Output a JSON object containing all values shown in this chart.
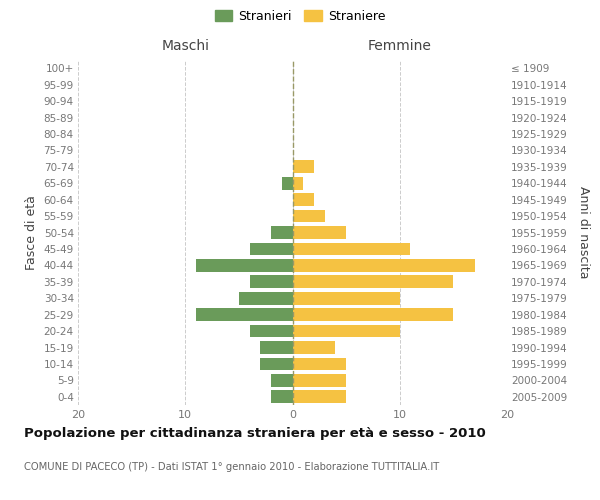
{
  "age_groups": [
    "0-4",
    "5-9",
    "10-14",
    "15-19",
    "20-24",
    "25-29",
    "30-34",
    "35-39",
    "40-44",
    "45-49",
    "50-54",
    "55-59",
    "60-64",
    "65-69",
    "70-74",
    "75-79",
    "80-84",
    "85-89",
    "90-94",
    "95-99",
    "100+"
  ],
  "birth_years": [
    "2005-2009",
    "2000-2004",
    "1995-1999",
    "1990-1994",
    "1985-1989",
    "1980-1984",
    "1975-1979",
    "1970-1974",
    "1965-1969",
    "1960-1964",
    "1955-1959",
    "1950-1954",
    "1945-1949",
    "1940-1944",
    "1935-1939",
    "1930-1934",
    "1925-1929",
    "1920-1924",
    "1915-1919",
    "1910-1914",
    "≤ 1909"
  ],
  "maschi": [
    2,
    2,
    3,
    3,
    4,
    9,
    5,
    4,
    9,
    4,
    2,
    0,
    0,
    1,
    0,
    0,
    0,
    0,
    0,
    0,
    0
  ],
  "femmine": [
    5,
    5,
    5,
    4,
    10,
    15,
    10,
    15,
    17,
    11,
    5,
    3,
    2,
    1,
    2,
    0,
    0,
    0,
    0,
    0,
    0
  ],
  "male_color": "#6a9b5a",
  "female_color": "#f5c242",
  "title": "Popolazione per cittadinanza straniera per età e sesso - 2010",
  "subtitle": "COMUNE DI PACECO (TP) - Dati ISTAT 1° gennaio 2010 - Elaborazione TUTTITALIA.IT",
  "ylabel_left": "Fasce di età",
  "ylabel_right": "Anni di nascita",
  "header_left": "Maschi",
  "header_right": "Femmine",
  "legend_male": "Stranieri",
  "legend_female": "Straniere",
  "xlim": 20,
  "background_color": "#ffffff",
  "grid_color": "#cccccc",
  "bar_height": 0.78,
  "tick_color": "#777777",
  "header_color": "#444444",
  "title_color": "#111111",
  "subtitle_color": "#666666"
}
